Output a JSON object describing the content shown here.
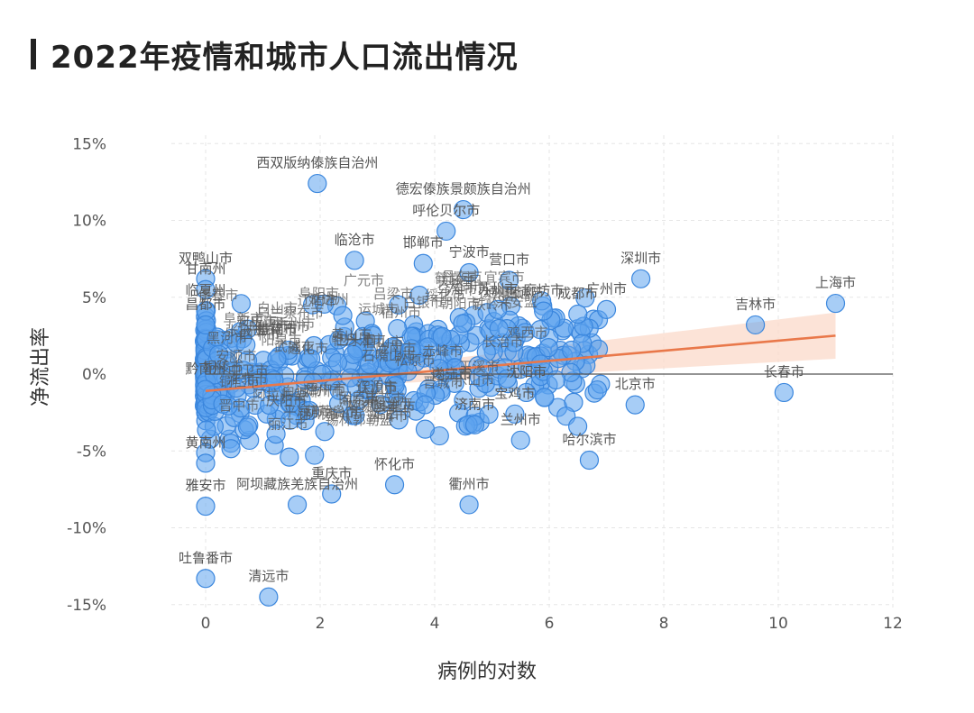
{
  "title": "2022年疫情和城市人口流出情况",
  "colors": {
    "point_fill": "#5ea4ee",
    "point_stroke": "#3a86dd",
    "trend": "#e9784a",
    "band": "#fbd9c9",
    "title": "#222222"
  },
  "chart_data": {
    "type": "scatter",
    "title": "2022年疫情和城市人口流出情况",
    "xlabel": "病例的对数",
    "ylabel": "净流出率",
    "xlim": [
      -1.2,
      12.2
    ],
    "ylim": [
      -16,
      16
    ],
    "x_ticks": [
      0,
      2,
      4,
      6,
      8,
      10,
      12
    ],
    "y_ticks": [
      15,
      10,
      5,
      0,
      -5,
      -10,
      -15
    ],
    "y_tick_labels": [
      "15%",
      "10%",
      "5%",
      "0%",
      "-5%",
      "-10%",
      "-15%"
    ],
    "grid": true,
    "zero_line": true,
    "trend_line": {
      "x": [
        0,
        11
      ],
      "y": [
        -1.1,
        2.5
      ],
      "ci_halfwidth": [
        0.2,
        1.5
      ]
    },
    "labeled_points": [
      {
        "name": "西双版纳傣族自治州",
        "x": 1.95,
        "y": 12.4
      },
      {
        "name": "德宏傣族景颇族自治州",
        "x": 4.5,
        "y": 10.7
      },
      {
        "name": "呼伦贝尔市",
        "x": 4.2,
        "y": 9.3
      },
      {
        "name": "临沧市",
        "x": 2.6,
        "y": 7.4
      },
      {
        "name": "邯郸市",
        "x": 3.8,
        "y": 7.2
      },
      {
        "name": "宁波市",
        "x": 4.6,
        "y": 6.6
      },
      {
        "name": "营口市",
        "x": 5.3,
        "y": 6.1
      },
      {
        "name": "深圳市",
        "x": 7.6,
        "y": 6.2
      },
      {
        "name": "上海市",
        "x": 11.0,
        "y": 4.6
      },
      {
        "name": "吉林市",
        "x": 9.6,
        "y": 3.2
      },
      {
        "name": "长春市",
        "x": 10.1,
        "y": -1.2
      },
      {
        "name": "北京市",
        "x": 7.5,
        "y": -2.0
      },
      {
        "name": "哈尔滨市",
        "x": 6.7,
        "y": -5.6
      },
      {
        "name": "苏州市",
        "x": 5.1,
        "y": 4.2
      },
      {
        "name": "廊坊市",
        "x": 5.9,
        "y": 4.1
      },
      {
        "name": "成都市",
        "x": 6.5,
        "y": 3.9
      },
      {
        "name": "广州市",
        "x": 7.0,
        "y": 4.2
      },
      {
        "name": "沈阳市",
        "x": 5.6,
        "y": -1.2
      },
      {
        "name": "济南市",
        "x": 4.7,
        "y": -3.3
      },
      {
        "name": "宝鸡市",
        "x": 5.4,
        "y": -2.6
      },
      {
        "name": "兰州市",
        "x": 5.5,
        "y": -4.3
      },
      {
        "name": "衢州市",
        "x": 4.6,
        "y": -8.5
      },
      {
        "name": "怀化市",
        "x": 3.3,
        "y": -7.2
      },
      {
        "name": "重庆市",
        "x": 2.2,
        "y": -7.8
      },
      {
        "name": "阿坝藏族羌族自治州",
        "x": 1.6,
        "y": -8.5
      },
      {
        "name": "雅安市",
        "x": 0.0,
        "y": -8.6
      },
      {
        "name": "黄南州",
        "x": 0.0,
        "y": -5.8
      },
      {
        "name": "吐鲁番市",
        "x": 0.0,
        "y": -13.3
      },
      {
        "name": "清远市",
        "x": 1.1,
        "y": -14.5
      },
      {
        "name": "黔南州",
        "x": 0.0,
        "y": -1.0
      },
      {
        "name": "双鸭山市",
        "x": 0.0,
        "y": 6.2
      },
      {
        "name": "甘南州",
        "x": 0.0,
        "y": 5.5
      },
      {
        "name": "临夏州",
        "x": 0.0,
        "y": 4.1
      },
      {
        "name": "昌都市",
        "x": 0.0,
        "y": 3.2
      }
    ]
  }
}
